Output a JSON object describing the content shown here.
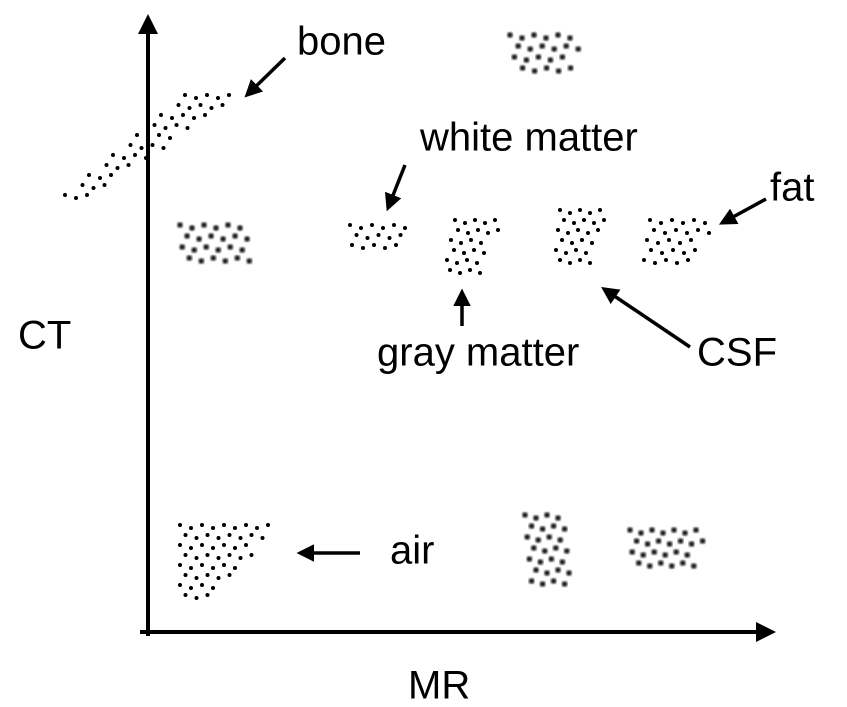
{
  "axes": {
    "y_label": "CT",
    "x_label": "MR"
  },
  "labels": [
    {
      "text": "bone"
    },
    {
      "text": "white matter"
    },
    {
      "text": "fat"
    },
    {
      "text": "gray matter"
    },
    {
      "text": "CSF"
    },
    {
      "text": "air"
    }
  ]
}
